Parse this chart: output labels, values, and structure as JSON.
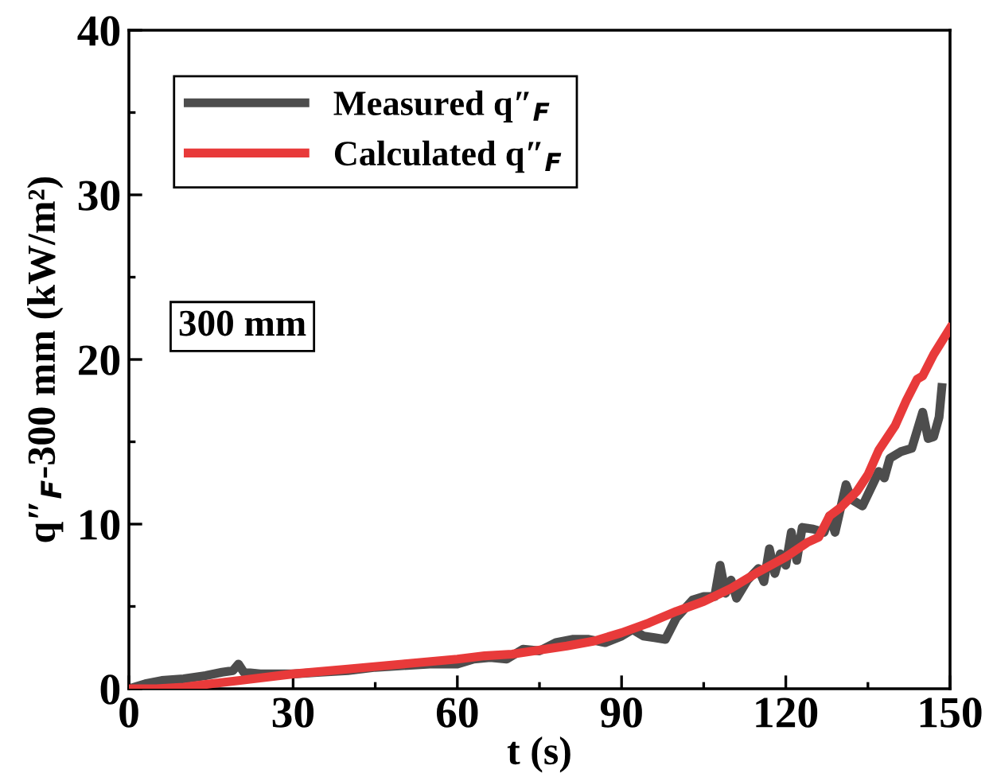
{
  "chart_data": {
    "type": "line",
    "xlabel": "t (s)",
    "ylabel": "q″$_{F}$-300 mm (kW/m²)",
    "xlim": [
      0,
      150
    ],
    "ylim": [
      0,
      40
    ],
    "xticks": [
      0,
      30,
      60,
      90,
      120,
      150
    ],
    "yticks": [
      0,
      10,
      20,
      30,
      40
    ],
    "grid": false,
    "legend": "top left",
    "marker": "none",
    "line_style": "solid",
    "annotations": [
      "300 mm"
    ],
    "series": [
      {
        "name": "Measured q″$_{F}$",
        "color": "#4d4d4d",
        "x": [
          0,
          3,
          6,
          10,
          14,
          17,
          19,
          20,
          21,
          24,
          27,
          30,
          35,
          40,
          45,
          50,
          55,
          60,
          63,
          66,
          69,
          72,
          75,
          78,
          81,
          84,
          87,
          90,
          92,
          94,
          96,
          98,
          100,
          103,
          105,
          107,
          108,
          109,
          110,
          111,
          113,
          115,
          116,
          117,
          118,
          119,
          120,
          121,
          122,
          123,
          125,
          127,
          128,
          129,
          131,
          132,
          134,
          136,
          137,
          138,
          139,
          141,
          143,
          145,
          146,
          147,
          148,
          148.5
        ],
        "values": [
          0,
          0.3,
          0.5,
          0.6,
          0.8,
          1.0,
          1.1,
          1.5,
          1.0,
          0.9,
          0.9,
          0.9,
          1.0,
          1.1,
          1.3,
          1.4,
          1.5,
          1.5,
          1.8,
          1.9,
          1.8,
          2.4,
          2.3,
          2.8,
          3.0,
          3.0,
          2.8,
          3.2,
          3.6,
          3.2,
          3.1,
          3.0,
          4.3,
          5.4,
          5.6,
          5.6,
          7.5,
          5.8,
          6.6,
          5.5,
          6.6,
          7.3,
          6.5,
          8.5,
          7.0,
          8.2,
          7.5,
          9.5,
          7.8,
          9.8,
          9.7,
          9.5,
          10.5,
          9.5,
          12.4,
          11.5,
          11.1,
          12.5,
          13.2,
          12.8,
          14.0,
          14.4,
          14.6,
          16.8,
          15.2,
          15.3,
          16.5,
          18.3
        ]
      },
      {
        "name": "Calculated q″$_{F}$",
        "color": "#e83a3a",
        "x": [
          0,
          5,
          10,
          15,
          20,
          30,
          40,
          50,
          60,
          65,
          70,
          80,
          85,
          90,
          95,
          100,
          105,
          110,
          115,
          120,
          124,
          126,
          128,
          130,
          133,
          135,
          137,
          140,
          142,
          144,
          145,
          147,
          150
        ],
        "values": [
          0,
          0,
          0.1,
          0.3,
          0.5,
          0.9,
          1.2,
          1.5,
          1.8,
          2.0,
          2.1,
          2.6,
          2.9,
          3.4,
          4.0,
          4.7,
          5.3,
          6.1,
          7.1,
          8.0,
          8.9,
          9.2,
          10.5,
          11.0,
          12.0,
          13.0,
          14.5,
          16.0,
          17.5,
          18.8,
          19.0,
          20.3,
          21.9
        ]
      }
    ]
  }
}
